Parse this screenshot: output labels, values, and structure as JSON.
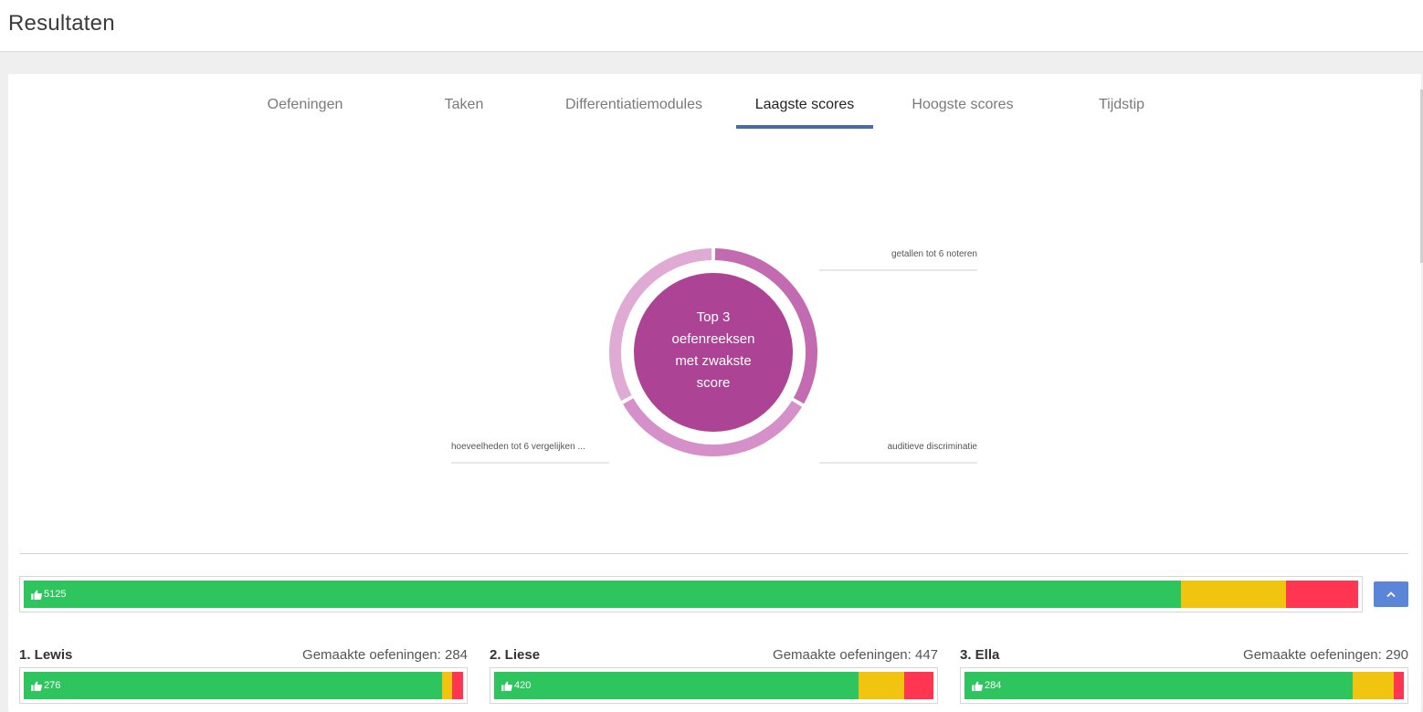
{
  "header": {
    "title": "Resultaten"
  },
  "tabs": [
    {
      "label": "Oefeningen",
      "active": false
    },
    {
      "label": "Taken",
      "active": false
    },
    {
      "label": "Differentiatiemodules",
      "active": false
    },
    {
      "label": "Laagste scores",
      "active": true
    },
    {
      "label": "Hoogste scores",
      "active": false
    },
    {
      "label": "Tijdstip",
      "active": false
    }
  ],
  "donut": {
    "center_text": "Top 3 oefenreeksen met zwakste score",
    "slices": [
      {
        "label": "getallen tot 6 noteren",
        "share": 0.335,
        "color": "#c36bb0"
      },
      {
        "label": "auditieve discriminatie",
        "share": 0.335,
        "color": "#d690c9"
      },
      {
        "label": "hoeveelheden tot 6 vergelijken ...",
        "share": 0.33,
        "color": "#dfaad4"
      }
    ],
    "inner_color": "#ad4394"
  },
  "colors": {
    "good": "#2ec55e",
    "medium": "#f1c40f",
    "bad": "#ff3552",
    "accent": "#4a6aab",
    "button": "#5b85d6"
  },
  "total": {
    "count": "5125",
    "shares": {
      "good": 0.867,
      "medium": 0.079,
      "bad": 0.054
    }
  },
  "collapse_button": {
    "icon": "chevron-up-icon"
  },
  "students": [
    {
      "name": "1. Lewis",
      "made_label": "Gemaakte oefeningen: 284",
      "count": "276",
      "shares": {
        "good": 0.952,
        "medium": 0.023,
        "bad": 0.025
      }
    },
    {
      "name": "2. Liese",
      "made_label": "Gemaakte oefeningen: 447",
      "count": "420",
      "shares": {
        "good": 0.83,
        "medium": 0.103,
        "bad": 0.067
      }
    },
    {
      "name": "3. Ella",
      "made_label": "Gemaakte oefeningen: 290",
      "count": "284",
      "shares": {
        "good": 0.883,
        "medium": 0.095,
        "bad": 0.022
      }
    }
  ]
}
